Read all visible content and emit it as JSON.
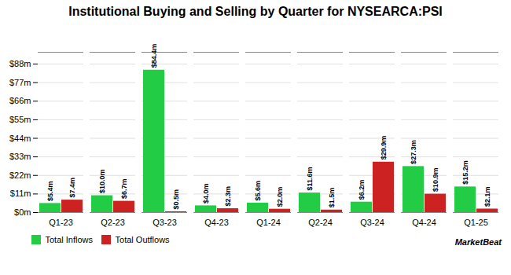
{
  "chart_data": {
    "type": "bar",
    "title": "Institutional Buying and Selling by Quarter for NYSEARCA:PSI",
    "categories": [
      "Q1-23",
      "Q2-23",
      "Q3-23",
      "Q4-23",
      "Q1-24",
      "Q2-24",
      "Q3-24",
      "Q4-24",
      "Q1-25"
    ],
    "series": [
      {
        "name": "Total Inflows",
        "color": "#22cc44",
        "values": [
          5.4,
          10.0,
          84.4,
          4.0,
          5.6,
          11.6,
          6.2,
          27.3,
          15.2
        ],
        "value_labels": [
          "$5.4m",
          "$10.0m",
          "$84.4m",
          "$4.0m",
          "$5.6m",
          "$11.6m",
          "$6.2m",
          "$27.3m",
          "$15.2m"
        ]
      },
      {
        "name": "Total Outflows",
        "color": "#cc2222",
        "values": [
          7.4,
          6.7,
          0.5,
          2.3,
          2.0,
          1.5,
          29.9,
          10.9,
          2.1
        ],
        "value_labels": [
          "$7.4m",
          "$6.7m",
          "$0.5m",
          "$2.3m",
          "$2.0m",
          "$1.5m",
          "$29.9m",
          "$10.9m",
          "$2.1m"
        ]
      }
    ],
    "ylim": [
      0,
      95
    ],
    "yticks": [
      {
        "value": 0,
        "label": "$0m"
      },
      {
        "value": 11,
        "label": "$11m"
      },
      {
        "value": 22,
        "label": "$22m"
      },
      {
        "value": 33,
        "label": "$33m"
      },
      {
        "value": 44,
        "label": "$44m"
      },
      {
        "value": 55,
        "label": "$55m"
      },
      {
        "value": 66,
        "label": "$66m"
      },
      {
        "value": 77,
        "label": "$77m"
      },
      {
        "value": 88,
        "label": "$88m"
      }
    ],
    "grid": true,
    "data_labels": true,
    "legend": "lower left",
    "annotations": [
      "MarketBeat"
    ]
  }
}
